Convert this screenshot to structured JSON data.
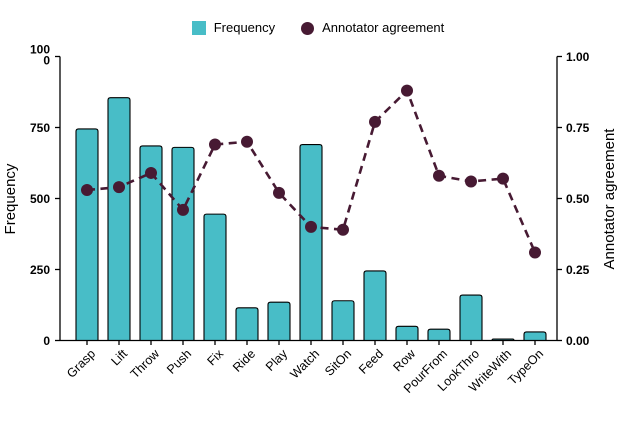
{
  "legend": {
    "items": [
      {
        "label": "Frequency",
        "marker": "square",
        "color": "#48BDC7"
      },
      {
        "label": "Annotator agreement",
        "marker": "circle",
        "color": "#471A33"
      }
    ]
  },
  "chart_data": {
    "type": "combo",
    "categories": [
      "Grasp",
      "Lift",
      "Throw",
      "Push",
      "Fix",
      "Ride",
      "Play",
      "Watch",
      "SitOn",
      "Feed",
      "Row",
      "PourFrom",
      "LookThro",
      "WriteWith",
      "TypeOn"
    ],
    "series": [
      {
        "name": "Frequency",
        "type": "bar",
        "axis": "left",
        "color": "#48BDC7",
        "outline": "#000000",
        "values": [
          745,
          855,
          685,
          680,
          445,
          115,
          135,
          690,
          140,
          245,
          50,
          40,
          160,
          5,
          30
        ]
      },
      {
        "name": "Annotator agreement",
        "type": "line",
        "line_style": "dashed",
        "point_marker": "circle",
        "axis": "right",
        "color": "#471A33",
        "values": [
          0.53,
          0.54,
          0.59,
          0.46,
          0.69,
          0.7,
          0.52,
          0.4,
          0.39,
          0.77,
          0.88,
          0.58,
          0.56,
          0.57,
          0.31
        ]
      }
    ],
    "left_axis": {
      "label": "Frequency",
      "range": [
        0,
        1000
      ],
      "ticks": [
        "0",
        "250",
        "500",
        "750",
        "1000"
      ],
      "top_tick_wrapped_lines": [
        "100",
        "0"
      ]
    },
    "right_axis": {
      "label": "Annotator agreement",
      "range": [
        0,
        1
      ],
      "ticks": [
        "0.00",
        "0.25",
        "0.50",
        "0.75",
        "1.00"
      ]
    },
    "x_axis": {
      "tick_label_angle_deg": -45
    },
    "grid": false,
    "legend_position": "top-center",
    "background": "#ffffff"
  }
}
